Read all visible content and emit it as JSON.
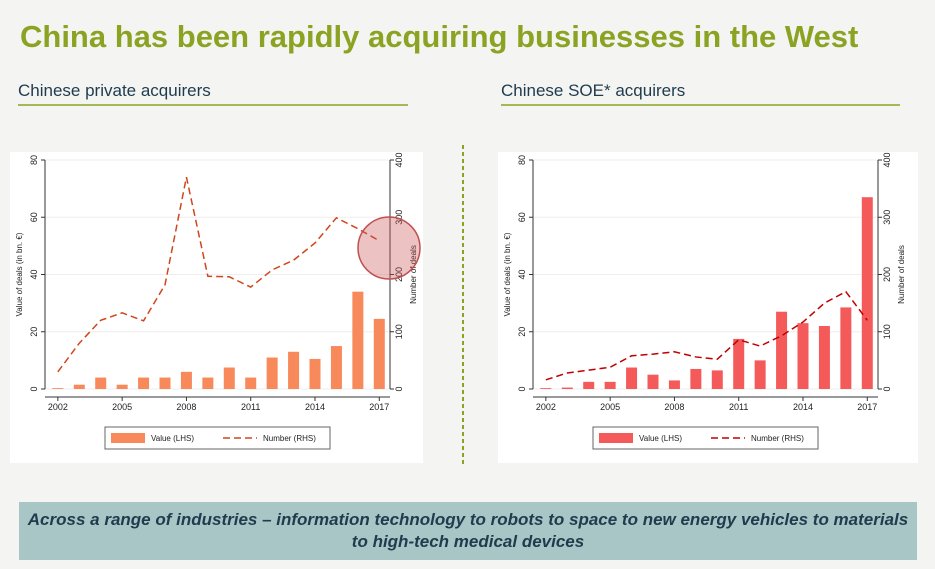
{
  "title": "China has been rapidly acquiring businesses in the West",
  "banner": "Across a range of industries – information technology to robots to space to new energy vehicles to materials to high-tech medical devices",
  "chart_data": [
    {
      "type": "bar",
      "title": "Chinese private acquirers",
      "y_label": "Value of deals (in bn. €)",
      "y2_label": "Number of deals",
      "x": [
        2002,
        2003,
        2004,
        2005,
        2006,
        2007,
        2008,
        2009,
        2010,
        2011,
        2012,
        2013,
        2014,
        2015,
        2016,
        2017
      ],
      "xlim": [
        2001.4,
        2017.5
      ],
      "xticks": [
        2002,
        2005,
        2008,
        2011,
        2014,
        2017
      ],
      "ylim": [
        0,
        80
      ],
      "yticks": [
        0,
        20,
        40,
        60,
        80
      ],
      "y2lim": [
        0,
        400
      ],
      "y2ticks": [
        0,
        100,
        200,
        300,
        400
      ],
      "grid": true,
      "series": [
        {
          "name": "Value (LHS)",
          "type": "bar",
          "color": "#f7895a",
          "values": [
            0.3,
            1.5,
            4,
            1.5,
            4,
            4,
            6,
            4,
            7.5,
            4,
            11,
            13,
            10.5,
            15,
            34,
            24.5
          ]
        },
        {
          "name": "Number (RHS)",
          "type": "line",
          "axis": "y2",
          "color": "#d0461c",
          "values": [
            30,
            80,
            120,
            133,
            119,
            182,
            370,
            197,
            196,
            178,
            208,
            225,
            255,
            299,
            280,
            259
          ]
        }
      ]
    },
    {
      "type": "bar",
      "title": "Chinese SOE* acquirers",
      "y_label": "Value of deals (in bn. €)",
      "y2_label": "Number of deals",
      "x": [
        2002,
        2003,
        2004,
        2005,
        2006,
        2007,
        2008,
        2009,
        2010,
        2011,
        2012,
        2013,
        2014,
        2015,
        2016,
        2017
      ],
      "xlim": [
        2001.4,
        2017.5
      ],
      "xticks": [
        2002,
        2005,
        2008,
        2011,
        2014,
        2017
      ],
      "ylim": [
        0,
        80
      ],
      "yticks": [
        0,
        20,
        40,
        60,
        80
      ],
      "y2lim": [
        0,
        400
      ],
      "y2ticks": [
        0,
        100,
        200,
        300,
        400
      ],
      "grid": true,
      "series": [
        {
          "name": "Value (LHS)",
          "type": "bar",
          "color": "#f55a5a",
          "values": [
            0.3,
            0.5,
            2.5,
            2.5,
            7.5,
            5,
            3,
            7,
            6.5,
            17.5,
            10,
            27,
            23,
            22,
            28.5,
            67
          ]
        },
        {
          "name": "Number (RHS)",
          "type": "line",
          "axis": "y2",
          "color": "#c00000",
          "values": [
            16,
            28,
            33,
            38,
            58,
            61,
            65,
            56,
            52,
            86,
            75,
            93,
            117,
            150,
            170,
            120
          ]
        }
      ]
    }
  ]
}
